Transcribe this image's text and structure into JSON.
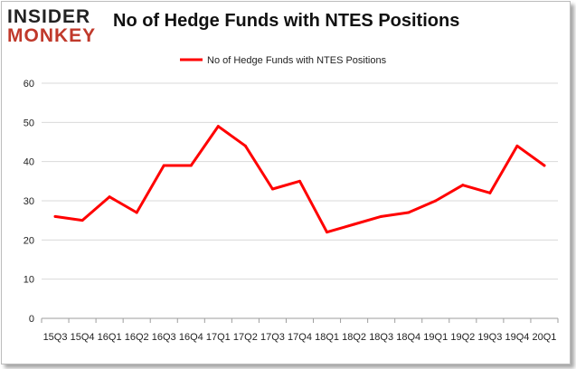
{
  "brand": {
    "line1": "INSIDER",
    "line2": "MONKEY"
  },
  "chart_data": {
    "type": "line",
    "title": "No of Hedge Funds with NTES Positions",
    "xlabel": "",
    "ylabel": "",
    "categories": [
      "15Q3",
      "15Q4",
      "16Q1",
      "16Q2",
      "16Q3",
      "16Q4",
      "17Q1",
      "17Q2",
      "17Q3",
      "17Q4",
      "18Q1",
      "18Q2",
      "18Q3",
      "18Q4",
      "19Q1",
      "19Q2",
      "19Q3",
      "19Q4",
      "20Q1"
    ],
    "series": [
      {
        "name": "No of Hedge Funds with NTES  Positions",
        "values": [
          26,
          25,
          31,
          27,
          39,
          39,
          49,
          44,
          33,
          35,
          22,
          24,
          26,
          27,
          30,
          34,
          32,
          44,
          39
        ]
      }
    ],
    "ylim": [
      0,
      60
    ],
    "yticks": [
      0,
      10,
      20,
      30,
      40,
      50,
      60
    ],
    "grid": true,
    "legend": "top-center",
    "series_color": "#ff0000"
  }
}
